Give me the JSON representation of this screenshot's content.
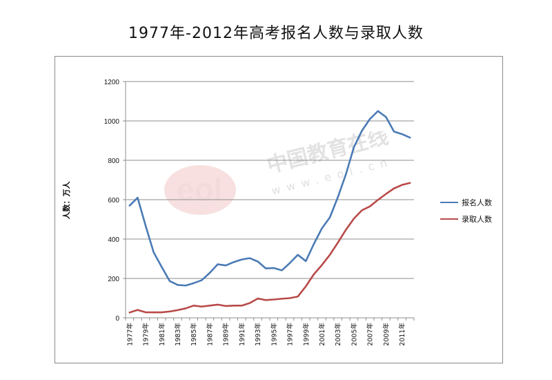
{
  "chart_data": {
    "type": "line",
    "title": "1977年-2012年高考报名人数与录取人数",
    "ylabel": "人数：万人",
    "xlabel": "",
    "ylim": [
      0,
      1200
    ],
    "yticks": [
      0,
      200,
      400,
      600,
      800,
      1000,
      1200
    ],
    "grid": true,
    "legend_position": "right",
    "x": [
      "1977年",
      "1978年",
      "1979年",
      "1980年",
      "1981年",
      "1982年",
      "1983年",
      "1984年",
      "1985年",
      "1986年",
      "1987年",
      "1988年",
      "1989年",
      "1990年",
      "1991年",
      "1992年",
      "1993年",
      "1994年",
      "1995年",
      "1996年",
      "1997年",
      "1998年",
      "1999年",
      "2000年",
      "2001年",
      "2002年",
      "2003年",
      "2004年",
      "2005年",
      "2006年",
      "2007年",
      "2008年",
      "2009年",
      "2010年",
      "2011年",
      "2012年"
    ],
    "xtick_labels": [
      "1977年",
      "1979年",
      "1981年",
      "1983年",
      "1985年",
      "1987年",
      "1989年",
      "1991年",
      "1993年",
      "1995年",
      "1997年",
      "1999年",
      "2001年",
      "2003年",
      "2005年",
      "2007年",
      "2009年",
      "2011年"
    ],
    "series": [
      {
        "name": "报名人数",
        "color": "#4a7ab5",
        "values": [
          570,
          610,
          468,
          333,
          259,
          187,
          167,
          164,
          176,
          191,
          228,
          272,
          266,
          283,
          296,
          303,
          286,
          251,
          253,
          241,
          278,
          320,
          288,
          375,
          454,
          510,
          613,
          729,
          867,
          950,
          1010,
          1050,
          1020,
          946,
          933,
          915
        ]
      },
      {
        "name": "录取人数",
        "color": "#b84a48",
        "values": [
          27,
          40,
          28,
          28,
          28,
          32,
          39,
          48,
          62,
          57,
          62,
          67,
          60,
          62,
          62,
          75,
          98,
          90,
          93,
          97,
          100,
          108,
          160,
          221,
          268,
          320,
          382,
          447,
          504,
          546,
          566,
          599,
          629,
          657,
          675,
          685
        ]
      }
    ]
  },
  "watermark": {
    "brand": "eol",
    "cn_text": "中国教育在线",
    "url_text": "www.eol.cn"
  }
}
